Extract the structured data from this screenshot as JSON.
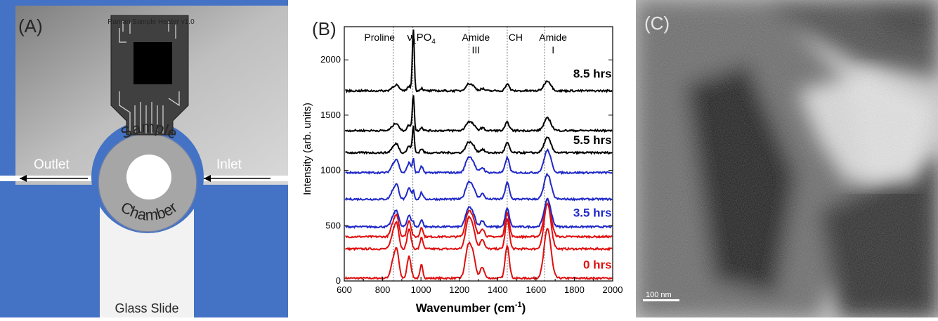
{
  "panel_a": {
    "label": "(A)",
    "device_title": "Raman Sample Heater v1.0",
    "outlet_label": "Outlet",
    "inlet_label": "Inlet",
    "sample_text": "Sample",
    "chamber_text": "Chamber",
    "glass_slide_label": "Glass Slide",
    "colors": {
      "frame": "#4472c4",
      "plate": "#a6a6a6",
      "chamber": "#a6a6a6",
      "slide": "#f2f2f2"
    }
  },
  "panel_b": {
    "label": "(B)",
    "band_labels": [
      {
        "line1": "Proline",
        "line2": "",
        "x": 850
      },
      {
        "line1": "ν1PO4",
        "line2": "",
        "x": 958
      },
      {
        "line1": "Amide",
        "line2": "III",
        "x": 1250
      },
      {
        "line1": "CH",
        "line2": "",
        "x": 1450
      },
      {
        "line1": "Amide",
        "line2": "I",
        "x": 1645
      }
    ],
    "band_label_nu": "ν",
    "band_label_sub1": "1",
    "band_label_po": "PO",
    "band_label_sub4": "4",
    "time_labels": [
      {
        "text": "8.5 hrs",
        "color": "#000000"
      },
      {
        "text": "5.5 hrs",
        "color": "#000000"
      },
      {
        "text": "3.5 hrs",
        "color": "#1f28c8"
      },
      {
        "text": "0 hrs",
        "color": "#e01010"
      }
    ]
  },
  "chart_data": {
    "type": "line",
    "title": "",
    "xlabel": "Wavenumber (cm-1)",
    "xlabel_main": "Wavenumber (cm",
    "xlabel_sup": "-1",
    "xlabel_end": ")",
    "ylabel": "Intensity (arb. units)",
    "xlim": [
      600,
      2000
    ],
    "ylim": [
      0,
      2300
    ],
    "xticks": [
      600,
      800,
      1000,
      1200,
      1400,
      1600,
      1800,
      2000
    ],
    "yticks": [
      0,
      500,
      1000,
      1500,
      2000
    ],
    "reference_lines": [
      855,
      958,
      1250,
      1450,
      1645
    ],
    "grid": false,
    "series": [
      {
        "name": "0 hrs",
        "color": "#e01010",
        "baseline": 25,
        "amp": 1.0
      },
      {
        "name": "",
        "color": "#e01010",
        "baseline": 290,
        "amp": 0.9
      },
      {
        "name": "",
        "color": "#e01010",
        "baseline": 400,
        "amp": 0.75
      },
      {
        "name": "3.5 hrs",
        "color": "#1f28c8",
        "baseline": 490,
        "amp": 0.55
      },
      {
        "name": "",
        "color": "#1f28c8",
        "baseline": 740,
        "amp": 0.5
      },
      {
        "name": "",
        "color": "#1f28c8",
        "baseline": 980,
        "amp": 0.45
      },
      {
        "name": "5.5 hrs",
        "color": "#000000",
        "baseline": 1160,
        "amp": 0.3
      },
      {
        "name": "",
        "color": "#000000",
        "baseline": 1360,
        "amp": 0.25
      },
      {
        "name": "8.5 hrs",
        "color": "#000000",
        "baseline": 1720,
        "amp": 0.2
      }
    ],
    "peaks": [
      {
        "center": 855,
        "width": 18,
        "height": 150
      },
      {
        "center": 875,
        "width": 15,
        "height": 220
      },
      {
        "center": 938,
        "width": 14,
        "height": 200
      },
      {
        "center": 1003,
        "width": 10,
        "height": 120
      },
      {
        "center": 1245,
        "width": 20,
        "height": 260
      },
      {
        "center": 1270,
        "width": 20,
        "height": 200
      },
      {
        "center": 1320,
        "width": 15,
        "height": 100
      },
      {
        "center": 1450,
        "width": 15,
        "height": 300
      },
      {
        "center": 1660,
        "width": 25,
        "height": 450
      }
    ],
    "phosphate_peak": {
      "center": 960,
      "width": 7
    },
    "phosphate_heights": [
      0,
      0,
      0,
      40,
      80,
      120,
      240,
      330,
      570
    ]
  },
  "panel_c": {
    "label": "(C)",
    "scale_bar_label": "100 nm"
  }
}
